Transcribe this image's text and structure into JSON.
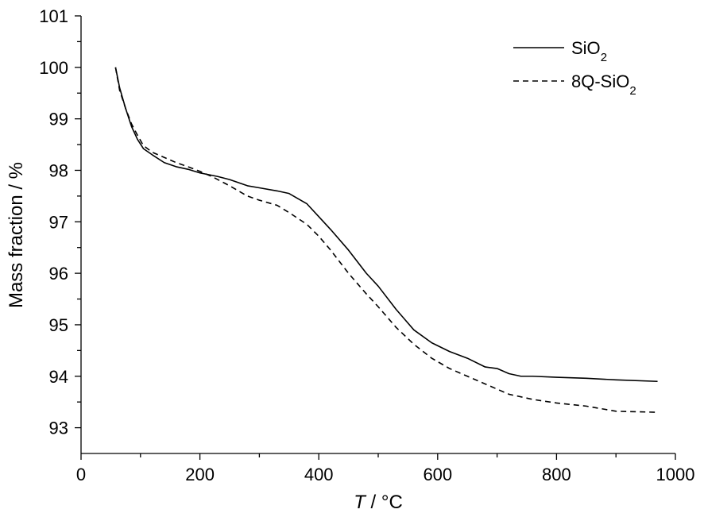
{
  "chart_data": {
    "type": "line",
    "xlabel": "T / °C",
    "ylabel": "Mass fraction / %",
    "xlim": [
      0,
      1000
    ],
    "ylim": [
      92.5,
      101
    ],
    "xticks": [
      0,
      200,
      400,
      600,
      800,
      1000
    ],
    "xtick_labels": [
      "0",
      "200",
      "400",
      "600",
      "800",
      "1000"
    ],
    "yticks": [
      93,
      94,
      95,
      96,
      97,
      98,
      99,
      100,
      101
    ],
    "ytick_labels": [
      "93",
      "94",
      "95",
      "96",
      "97",
      "98",
      "99",
      "100",
      "101"
    ],
    "grid": false,
    "legend_position": "top-right",
    "series": [
      {
        "name": "SiO2",
        "style": "solid",
        "color": "#000000",
        "x": [
          58,
          65,
          75,
          85,
          95,
          105,
          120,
          140,
          160,
          180,
          200,
          230,
          250,
          280,
          300,
          330,
          350,
          380,
          400,
          420,
          450,
          480,
          500,
          530,
          560,
          590,
          620,
          650,
          680,
          700,
          720,
          740,
          760,
          800,
          850,
          900,
          970
        ],
        "y": [
          100.0,
          99.6,
          99.2,
          98.85,
          98.6,
          98.42,
          98.3,
          98.15,
          98.07,
          98.02,
          97.95,
          97.88,
          97.82,
          97.7,
          97.66,
          97.6,
          97.55,
          97.35,
          97.1,
          96.85,
          96.45,
          96.0,
          95.75,
          95.3,
          94.9,
          94.65,
          94.48,
          94.35,
          94.18,
          94.15,
          94.05,
          94.0,
          94.0,
          93.98,
          93.96,
          93.93,
          93.9
        ]
      },
      {
        "name": "8Q-SiO2",
        "style": "dashed",
        "color": "#000000",
        "x": [
          58,
          65,
          75,
          85,
          95,
          105,
          120,
          140,
          160,
          180,
          200,
          220,
          250,
          280,
          300,
          330,
          350,
          380,
          400,
          420,
          450,
          480,
          500,
          530,
          560,
          590,
          620,
          650,
          680,
          700,
          720,
          740,
          760,
          800,
          850,
          900,
          970
        ],
        "y": [
          100.0,
          99.55,
          99.2,
          98.9,
          98.68,
          98.48,
          98.35,
          98.25,
          98.15,
          98.07,
          97.98,
          97.88,
          97.7,
          97.5,
          97.42,
          97.32,
          97.18,
          96.95,
          96.72,
          96.45,
          96.0,
          95.6,
          95.35,
          94.95,
          94.62,
          94.35,
          94.15,
          94.0,
          93.85,
          93.75,
          93.65,
          93.6,
          93.55,
          93.48,
          93.42,
          93.32,
          93.3
        ]
      }
    ]
  }
}
